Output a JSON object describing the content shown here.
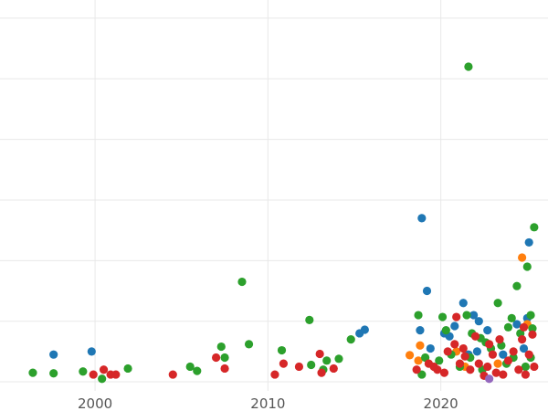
{
  "chart_data": {
    "type": "scatter",
    "title": "",
    "xlabel": "",
    "ylabel": "",
    "xlim": [
      1994.5,
      2026.2
    ],
    "ylim": [
      -0.15,
      6.3
    ],
    "x_ticks": [
      2000,
      2010,
      2020
    ],
    "x_tick_labels": [
      "2000",
      "2010",
      "2020"
    ],
    "y_gridlines": [
      0,
      1,
      2,
      3,
      4,
      5,
      6
    ],
    "grid": true,
    "legend": "none",
    "series": [
      {
        "color": "#1f77b4",
        "points": [
          [
            1997.6,
            0.45
          ],
          [
            1999.8,
            0.5
          ],
          [
            2015.3,
            0.8
          ],
          [
            2015.6,
            0.86
          ],
          [
            2018.8,
            0.85
          ],
          [
            2018.9,
            2.7
          ],
          [
            2019.2,
            1.5
          ],
          [
            2019.4,
            0.55
          ],
          [
            2020.2,
            0.8
          ],
          [
            2020.5,
            0.75
          ],
          [
            2020.8,
            0.92
          ],
          [
            2021.3,
            1.3
          ],
          [
            2021.9,
            1.1
          ],
          [
            2022.2,
            1.0
          ],
          [
            2022.7,
            0.85
          ],
          [
            2022.1,
            0.5
          ],
          [
            2023.6,
            0.45
          ],
          [
            2024.4,
            0.95
          ],
          [
            2025.1,
            2.3
          ],
          [
            2025.0,
            1.05
          ],
          [
            2024.8,
            0.55
          ],
          [
            2021.6,
            0.45
          ]
        ]
      },
      {
        "color": "#ff7f0e",
        "points": [
          [
            2018.2,
            0.44
          ],
          [
            2018.7,
            0.35
          ],
          [
            2018.8,
            0.6
          ],
          [
            2020.9,
            0.5
          ],
          [
            2023.3,
            0.3
          ],
          [
            2024.7,
            2.05
          ],
          [
            2025.0,
            0.95
          ],
          [
            2021.4,
            0.25
          ]
        ]
      },
      {
        "color": "#2ca02c",
        "points": [
          [
            1996.4,
            0.15
          ],
          [
            1997.6,
            0.14
          ],
          [
            1999.3,
            0.17
          ],
          [
            2000.4,
            0.05
          ],
          [
            2001.9,
            0.22
          ],
          [
            2005.5,
            0.25
          ],
          [
            2005.9,
            0.18
          ],
          [
            2007.3,
            0.58
          ],
          [
            2007.5,
            0.4
          ],
          [
            2008.5,
            1.65
          ],
          [
            2008.9,
            0.62
          ],
          [
            2010.8,
            0.52
          ],
          [
            2012.4,
            1.02
          ],
          [
            2012.5,
            0.28
          ],
          [
            2013.2,
            0.2
          ],
          [
            2013.4,
            0.35
          ],
          [
            2014.1,
            0.38
          ],
          [
            2014.8,
            0.7
          ],
          [
            2018.7,
            1.1
          ],
          [
            2018.9,
            0.12
          ],
          [
            2020.1,
            1.07
          ],
          [
            2020.3,
            0.85
          ],
          [
            2021.5,
            1.1
          ],
          [
            2021.6,
            5.2
          ],
          [
            2021.8,
            0.8
          ],
          [
            2022.3,
            0.72
          ],
          [
            2022.6,
            0.65
          ],
          [
            2023.3,
            1.3
          ],
          [
            2023.8,
            0.3
          ],
          [
            2024.1,
            1.05
          ],
          [
            2024.4,
            1.58
          ],
          [
            2024.6,
            0.8
          ],
          [
            2025.0,
            1.9
          ],
          [
            2025.2,
            1.1
          ],
          [
            2025.4,
            2.55
          ],
          [
            2019.9,
            0.35
          ],
          [
            2020.6,
            0.45
          ],
          [
            2021.1,
            0.25
          ],
          [
            2021.7,
            0.4
          ],
          [
            2022.4,
            0.2
          ],
          [
            2022.9,
            0.55
          ],
          [
            2023.5,
            0.6
          ],
          [
            2024.2,
            0.4
          ],
          [
            2024.9,
            0.25
          ],
          [
            2025.2,
            0.4
          ],
          [
            2025.3,
            0.88
          ],
          [
            2019.1,
            0.4
          ],
          [
            2023.9,
            0.9
          ]
        ]
      },
      {
        "color": "#d62728",
        "points": [
          [
            1999.9,
            0.12
          ],
          [
            2000.5,
            0.2
          ],
          [
            2000.9,
            0.12
          ],
          [
            2001.2,
            0.12
          ],
          [
            2004.5,
            0.12
          ],
          [
            2007.0,
            0.4
          ],
          [
            2007.5,
            0.22
          ],
          [
            2010.4,
            0.12
          ],
          [
            2010.9,
            0.3
          ],
          [
            2011.8,
            0.25
          ],
          [
            2013.0,
            0.46
          ],
          [
            2013.1,
            0.15
          ],
          [
            2013.8,
            0.22
          ],
          [
            2018.6,
            0.2
          ],
          [
            2019.3,
            0.3
          ],
          [
            2019.8,
            0.2
          ],
          [
            2020.2,
            0.15
          ],
          [
            2020.4,
            0.5
          ],
          [
            2020.8,
            0.62
          ],
          [
            2020.9,
            1.07
          ],
          [
            2021.1,
            0.3
          ],
          [
            2021.4,
            0.42
          ],
          [
            2021.7,
            0.2
          ],
          [
            2022.0,
            0.75
          ],
          [
            2022.2,
            0.3
          ],
          [
            2022.5,
            0.1
          ],
          [
            2022.7,
            0.25
          ],
          [
            2023.0,
            0.45
          ],
          [
            2023.2,
            0.15
          ],
          [
            2023.4,
            0.7
          ],
          [
            2023.6,
            0.12
          ],
          [
            2023.9,
            0.35
          ],
          [
            2024.2,
            0.5
          ],
          [
            2024.5,
            0.2
          ],
          [
            2024.7,
            0.7
          ],
          [
            2024.9,
            0.12
          ],
          [
            2025.1,
            0.45
          ],
          [
            2025.3,
            0.78
          ],
          [
            2025.4,
            0.25
          ],
          [
            2024.8,
            0.9
          ],
          [
            2019.6,
            0.25
          ],
          [
            2022.8,
            0.62
          ],
          [
            2021.3,
            0.55
          ]
        ]
      },
      {
        "color": "#9467bd",
        "points": [
          [
            2022.8,
            0.05
          ]
        ]
      }
    ]
  }
}
